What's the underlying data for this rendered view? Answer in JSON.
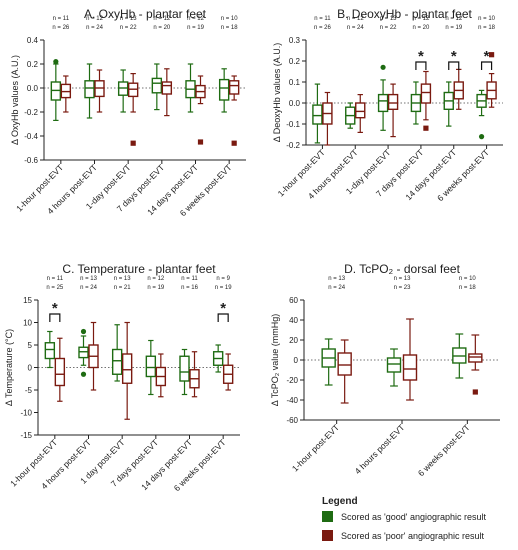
{
  "colors": {
    "good": "#1e6b12",
    "poor": "#7a1a10"
  },
  "legend": {
    "title": "Legend",
    "good_label": "Scored as 'good' angiographic result",
    "poor_label": "Scored as 'poor' angiographic result"
  },
  "chart_data": [
    {
      "id": "A",
      "type": "boxplot",
      "title": "A. OxyHb - plantar feet",
      "ylabel": "Δ OxyHb values (A.U.)",
      "ylim": [
        -0.6,
        0.4
      ],
      "yticks": [
        0.4,
        0.2,
        0.0,
        -0.2,
        -0.4,
        -0.6
      ],
      "ytick_labels": [
        "0.4",
        "0.2",
        "0.0",
        "-0.2",
        "-0.4",
        "-0.6"
      ],
      "categories": [
        "1-hour post-EVT",
        "4 hours post-EVT",
        "1-day post-EVT",
        "7 days post-EVT",
        "14 days post-EVT",
        "6 weeks post-EVT"
      ],
      "n_good": [
        "n = 11",
        "n = 12",
        "n = 13",
        "n = 12",
        "n = 12",
        "n = 10"
      ],
      "n_poor": [
        "n = 26",
        "n = 24",
        "n = 22",
        "n = 20",
        "n = 19",
        "n = 18"
      ],
      "significant": [],
      "series": [
        {
          "name": "good",
          "boxes": [
            {
              "min": -0.27,
              "q1": -0.1,
              "median": -0.02,
              "q3": 0.05,
              "max": 0.2,
              "outliers": [
                0.22
              ]
            },
            {
              "min": -0.25,
              "q1": -0.08,
              "median": 0.0,
              "q3": 0.06,
              "max": 0.2,
              "outliers": []
            },
            {
              "min": -0.2,
              "q1": -0.06,
              "median": 0.0,
              "q3": 0.05,
              "max": 0.15,
              "outliers": []
            },
            {
              "min": -0.18,
              "q1": -0.04,
              "median": 0.04,
              "q3": 0.08,
              "max": 0.2,
              "outliers": []
            },
            {
              "min": -0.2,
              "q1": -0.08,
              "median": -0.01,
              "q3": 0.06,
              "max": 0.2,
              "outliers": []
            },
            {
              "min": -0.2,
              "q1": -0.1,
              "median": 0.0,
              "q3": 0.07,
              "max": 0.16,
              "outliers": []
            }
          ]
        },
        {
          "name": "poor",
          "boxes": [
            {
              "min": -0.2,
              "q1": -0.08,
              "median": -0.03,
              "q3": 0.03,
              "max": 0.1,
              "outliers": []
            },
            {
              "min": -0.2,
              "q1": -0.07,
              "median": 0.0,
              "q3": 0.06,
              "max": 0.15,
              "outliers": []
            },
            {
              "min": -0.2,
              "q1": -0.07,
              "median": -0.01,
              "q3": 0.04,
              "max": 0.12,
              "outliers": [
                -0.46
              ]
            },
            {
              "min": -0.23,
              "q1": -0.05,
              "median": 0.02,
              "q3": 0.05,
              "max": 0.16,
              "outliers": []
            },
            {
              "min": -0.13,
              "q1": -0.08,
              "median": -0.03,
              "q3": 0.02,
              "max": 0.1,
              "outliers": [
                -0.45
              ]
            },
            {
              "min": -0.1,
              "q1": -0.05,
              "median": 0.02,
              "q3": 0.06,
              "max": 0.1,
              "outliers": [
                -0.46
              ]
            }
          ]
        }
      ]
    },
    {
      "id": "B",
      "type": "boxplot",
      "title": "B. DeoxyHb - plantar feet",
      "ylabel": "Δ DeoxyHb values (A.U.)",
      "ylim": [
        -0.2,
        0.3
      ],
      "yticks": [
        0.3,
        0.2,
        0.1,
        0.0,
        -0.1,
        -0.2
      ],
      "ytick_labels": [
        "0.3",
        "0.2",
        "0.1",
        "0.0",
        "-0.1",
        "-0.2"
      ],
      "categories": [
        "1-hour post-EVT",
        "4 hours post-EVT",
        "1-day post-EVT",
        "7 days post-EVT",
        "14 days post-EVT",
        "6 weeks post-EVT"
      ],
      "n_good": [
        "n = 11",
        "n = 12",
        "n = 13",
        "n = 12",
        "n = 12",
        "n = 10"
      ],
      "n_poor": [
        "n = 26",
        "n = 24",
        "n = 22",
        "n = 20",
        "n = 19",
        "n = 18"
      ],
      "significant": [
        3,
        4,
        5
      ],
      "series": [
        {
          "name": "good",
          "boxes": [
            {
              "min": -0.19,
              "q1": -0.1,
              "median": -0.06,
              "q3": -0.01,
              "max": 0.09,
              "outliers": []
            },
            {
              "min": -0.12,
              "q1": -0.1,
              "median": -0.06,
              "q3": -0.02,
              "max": 0.0,
              "outliers": []
            },
            {
              "min": -0.13,
              "q1": -0.04,
              "median": 0.01,
              "q3": 0.04,
              "max": 0.11,
              "outliers": [
                0.17
              ]
            },
            {
              "min": -0.1,
              "q1": -0.04,
              "median": 0.0,
              "q3": 0.04,
              "max": 0.1,
              "outliers": []
            },
            {
              "min": -0.11,
              "q1": -0.03,
              "median": 0.01,
              "q3": 0.05,
              "max": 0.1,
              "outliers": []
            },
            {
              "min": -0.06,
              "q1": -0.02,
              "median": 0.01,
              "q3": 0.04,
              "max": 0.06,
              "outliers": [
                -0.16
              ]
            }
          ]
        },
        {
          "name": "poor",
          "boxes": [
            {
              "min": -0.2,
              "q1": -0.1,
              "median": -0.05,
              "q3": 0.0,
              "max": 0.05,
              "outliers": []
            },
            {
              "min": -0.14,
              "q1": -0.07,
              "median": -0.04,
              "q3": 0.0,
              "max": 0.04,
              "outliers": []
            },
            {
              "min": -0.16,
              "q1": -0.03,
              "median": 0.0,
              "q3": 0.04,
              "max": 0.09,
              "outliers": []
            },
            {
              "min": -0.08,
              "q1": 0.0,
              "median": 0.05,
              "q3": 0.09,
              "max": 0.15,
              "outliers": [
                -0.12
              ]
            },
            {
              "min": -0.03,
              "q1": 0.02,
              "median": 0.06,
              "q3": 0.1,
              "max": 0.16,
              "outliers": []
            },
            {
              "min": -0.02,
              "q1": 0.02,
              "median": 0.06,
              "q3": 0.1,
              "max": 0.14,
              "outliers": [
                0.23
              ]
            }
          ]
        }
      ]
    },
    {
      "id": "C",
      "type": "boxplot",
      "title": "C. Temperature - plantar feet",
      "ylabel": "Δ Temperature (°C)",
      "ylim": [
        -15,
        15
      ],
      "yticks": [
        15,
        10,
        5,
        0,
        -5,
        -10,
        -15
      ],
      "ytick_labels": [
        "15",
        "10",
        "5",
        "0",
        "-5",
        "-10",
        "-15"
      ],
      "categories": [
        "1-hour post-EVT",
        "4 hours post-EVT",
        "1 day post-EVT",
        "7 days post-EVT",
        "14 days post-EVT",
        "6 weeks post-EVT"
      ],
      "n_good": [
        "n = 11",
        "n = 13",
        "n = 13",
        "n = 12",
        "n = 11",
        "n = 9"
      ],
      "n_poor": [
        "n = 25",
        "n = 24",
        "n = 21",
        "n = 19",
        "n = 16",
        "n = 19"
      ],
      "significant": [
        0,
        5
      ],
      "series": [
        {
          "name": "good",
          "boxes": [
            {
              "min": 0.0,
              "q1": 2.0,
              "median": 4.0,
              "q3": 5.5,
              "max": 8.0,
              "outliers": []
            },
            {
              "min": 0.5,
              "q1": 2.2,
              "median": 3.5,
              "q3": 4.5,
              "max": 7.0,
              "outliers": [
                8.0,
                -1.5
              ]
            },
            {
              "min": -3.0,
              "q1": -1.5,
              "median": 1.5,
              "q3": 4.0,
              "max": 9.5,
              "outliers": []
            },
            {
              "min": -6.0,
              "q1": -2.0,
              "median": 0.0,
              "q3": 2.5,
              "max": 6.0,
              "outliers": []
            },
            {
              "min": -6.0,
              "q1": -3.0,
              "median": -1.0,
              "q3": 2.5,
              "max": 4.0,
              "outliers": []
            },
            {
              "min": -1.0,
              "q1": 0.5,
              "median": 2.0,
              "q3": 3.5,
              "max": 5.0,
              "outliers": []
            }
          ]
        },
        {
          "name": "poor",
          "boxes": [
            {
              "min": -7.5,
              "q1": -4.0,
              "median": -1.5,
              "q3": 2.0,
              "max": 6.5,
              "outliers": []
            },
            {
              "min": -5.0,
              "q1": 0.0,
              "median": 2.5,
              "q3": 5.0,
              "max": 10.0,
              "outliers": []
            },
            {
              "min": -11.5,
              "q1": -3.5,
              "median": -0.5,
              "q3": 3.0,
              "max": 10.0,
              "outliers": []
            },
            {
              "min": -6.5,
              "q1": -4.0,
              "median": -2.0,
              "q3": 0.0,
              "max": 3.0,
              "outliers": []
            },
            {
              "min": -6.5,
              "q1": -4.5,
              "median": -2.5,
              "q3": -0.5,
              "max": 3.5,
              "outliers": []
            },
            {
              "min": -5.0,
              "q1": -3.5,
              "median": -1.5,
              "q3": 0.5,
              "max": 3.0,
              "outliers": []
            }
          ]
        }
      ]
    },
    {
      "id": "D",
      "type": "boxplot",
      "title": "D. TcPO₂ - dorsal feet",
      "ylabel": "Δ TcPO₂ value (mmHg)",
      "ylim": [
        -60,
        60
      ],
      "yticks": [
        60,
        40,
        20,
        0,
        -20,
        -40,
        -60
      ],
      "ytick_labels": [
        "60",
        "40",
        "20",
        "0",
        "-20",
        "-40",
        "-60"
      ],
      "categories": [
        "1-hour post-EVT",
        "4 hours post-EVT",
        "6 weeks post-EVT"
      ],
      "n_good": [
        "n = 13",
        "n = 13",
        "n = 10"
      ],
      "n_poor": [
        "n = 24",
        "n = 23",
        "n = 18"
      ],
      "significant": [],
      "series": [
        {
          "name": "good",
          "boxes": [
            {
              "min": -25,
              "q1": -7,
              "median": 2,
              "q3": 11,
              "max": 21,
              "outliers": []
            },
            {
              "min": -26,
              "q1": -12,
              "median": -4,
              "q3": 2,
              "max": 11,
              "outliers": []
            },
            {
              "min": -18,
              "q1": -3,
              "median": 4,
              "q3": 12,
              "max": 26,
              "outliers": []
            }
          ]
        },
        {
          "name": "poor",
          "boxes": [
            {
              "min": -43,
              "q1": -15,
              "median": -5,
              "q3": 7,
              "max": 20,
              "outliers": []
            },
            {
              "min": -40,
              "q1": -20,
              "median": -9,
              "q3": 5,
              "max": 41,
              "outliers": []
            },
            {
              "min": -10,
              "q1": -2,
              "median": 3,
              "q3": 6,
              "max": 25,
              "outliers": [
                -32
              ]
            }
          ]
        }
      ]
    }
  ]
}
